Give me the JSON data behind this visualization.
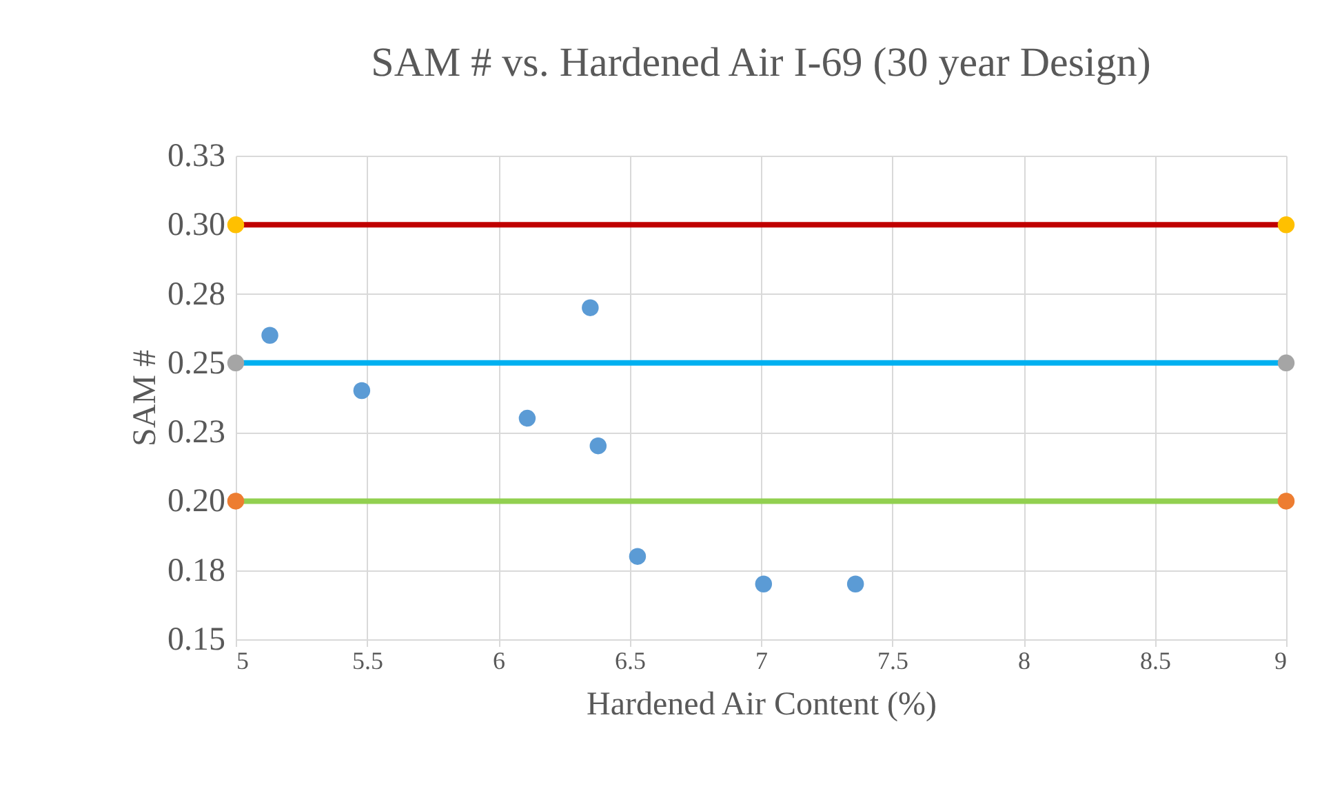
{
  "chart_data": {
    "type": "scatter",
    "title": "SAM # vs. Hardened Air I-69 (30 year Design)",
    "xlabel": "Hardened Air Content (%)",
    "ylabel": "SAM #",
    "xlim": [
      5,
      9
    ],
    "xticks": [
      5,
      5.5,
      6,
      6.5,
      7,
      7.5,
      8,
      8.5,
      9
    ],
    "ylim": [
      0.15,
      0.325
    ],
    "yticks": [
      {
        "value": 0.15,
        "label": "0.15"
      },
      {
        "value": 0.175,
        "label": "0.18"
      },
      {
        "value": 0.2,
        "label": "0.20"
      },
      {
        "value": 0.225,
        "label": "0.23"
      },
      {
        "value": 0.25,
        "label": "0.25"
      },
      {
        "value": 0.275,
        "label": "0.28"
      },
      {
        "value": 0.3,
        "label": "0.30"
      },
      {
        "value": 0.325,
        "label": "0.33"
      }
    ],
    "grid": true,
    "line_style": "solid",
    "series": [
      {
        "marker": "circle",
        "color": "#5b9bd5",
        "x": [
          5.13,
          5.48,
          6.11,
          6.35,
          6.38,
          6.53,
          7.01,
          7.36
        ],
        "values": [
          0.26,
          0.24,
          0.23,
          0.27,
          0.22,
          0.18,
          0.17,
          0.17
        ]
      },
      {
        "type": "line",
        "color": "#c00000",
        "x": [
          5,
          9
        ],
        "values": [
          0.3,
          0.3
        ]
      },
      {
        "type": "line",
        "color": "#00b0f0",
        "x": [
          5,
          9
        ],
        "values": [
          0.25,
          0.25
        ]
      },
      {
        "type": "line",
        "color": "#92d050",
        "x": [
          5,
          9
        ],
        "values": [
          0.2,
          0.2
        ]
      },
      {
        "marker": "circle",
        "color": "#ffc000",
        "x": [
          5,
          9
        ],
        "values": [
          0.3,
          0.3
        ]
      },
      {
        "marker": "circle",
        "color": "#a5a5a5",
        "x": [
          5,
          9
        ],
        "values": [
          0.25,
          0.25
        ]
      },
      {
        "marker": "circle",
        "color": "#ed7d31",
        "x": [
          5,
          9
        ],
        "values": [
          0.2,
          0.2
        ]
      }
    ]
  }
}
